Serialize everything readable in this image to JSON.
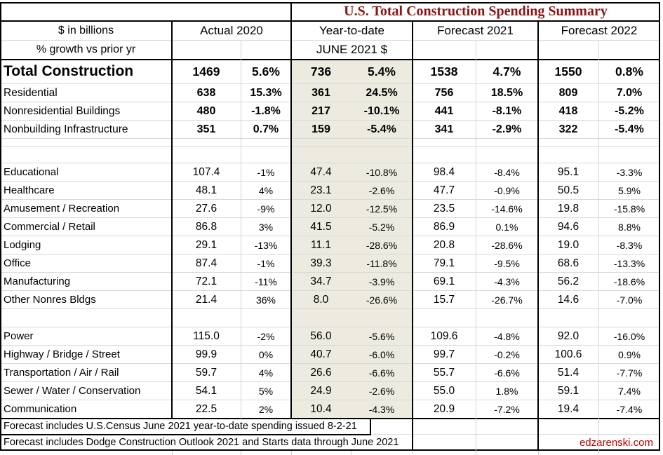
{
  "title": "U.S. Total Construction Spending Summary",
  "header": {
    "units_line1": "$ in billions",
    "units_line2": "% growth vs prior yr",
    "col_actual": "Actual 2020",
    "col_ytd_line1": "Year-to-date",
    "col_ytd_line2": "JUNE 2021 $",
    "col_forecast_2021": "Forecast 2021",
    "col_forecast_2022": "Forecast 2022"
  },
  "colors": {
    "title_text": "#8B1515",
    "ytd_highlight": "#EDEBE0",
    "watermark": "#C00000",
    "gridline": "#D9D9D9",
    "border": "#000000"
  },
  "rows": [
    {
      "style": "total",
      "label": "Total Construction",
      "a": "1469",
      "a_pct": "5.6%",
      "y": "736",
      "y_pct": "5.4%",
      "f1": "1538",
      "f1_pct": "4.7%",
      "f2": "1550",
      "f2_pct": "0.8%"
    },
    {
      "style": "subtotal",
      "label": "Residential",
      "a": "638",
      "a_pct": "15.3%",
      "y": "361",
      "y_pct": "24.5%",
      "f1": "756",
      "f1_pct": "18.5%",
      "f2": "809",
      "f2_pct": "7.0%"
    },
    {
      "style": "subtotal",
      "label": "Nonresidential Buildings",
      "a": "480",
      "a_pct": "-1.8%",
      "y": "217",
      "y_pct": "-10.1%",
      "f1": "441",
      "f1_pct": "-8.1%",
      "f2": "418",
      "f2_pct": "-5.2%"
    },
    {
      "style": "subtotal",
      "label": "Nonbuilding Infrastructure",
      "a": "351",
      "a_pct": "0.7%",
      "y": "159",
      "y_pct": "-5.4%",
      "f1": "341",
      "f1_pct": "-2.9%",
      "f2": "322",
      "f2_pct": "-5.4%"
    },
    {
      "style": "blank-sm"
    },
    {
      "style": "blank-md"
    },
    {
      "style": "detail",
      "label": "Educational",
      "a": "107.4",
      "a_pct": "-1%",
      "y": "47.4",
      "y_pct": "-10.8%",
      "f1": "98.4",
      "f1_pct": "-8.4%",
      "f2": "95.1",
      "f2_pct": "-3.3%"
    },
    {
      "style": "detail",
      "label": "Healthcare",
      "a": "48.1",
      "a_pct": "4%",
      "y": "23.1",
      "y_pct": "-2.6%",
      "f1": "47.7",
      "f1_pct": "-0.9%",
      "f2": "50.5",
      "f2_pct": "5.9%"
    },
    {
      "style": "detail",
      "label": "Amusement / Recreation",
      "a": "27.6",
      "a_pct": "-9%",
      "y": "12.0",
      "y_pct": "-12.5%",
      "f1": "23.5",
      "f1_pct": "-14.6%",
      "f2": "19.8",
      "f2_pct": "-15.8%"
    },
    {
      "style": "detail",
      "label": "Commercial / Retail",
      "a": "86.8",
      "a_pct": "3%",
      "y": "41.5",
      "y_pct": "-5.2%",
      "f1": "86.9",
      "f1_pct": "0.1%",
      "f2": "94.6",
      "f2_pct": "8.8%"
    },
    {
      "style": "detail",
      "label": "Lodging",
      "a": "29.1",
      "a_pct": "-13%",
      "y": "11.1",
      "y_pct": "-28.6%",
      "f1": "20.8",
      "f1_pct": "-28.6%",
      "f2": "19.0",
      "f2_pct": "-8.3%"
    },
    {
      "style": "detail",
      "label": "Office",
      "a": "87.4",
      "a_pct": "-1%",
      "y": "39.3",
      "y_pct": "-11.8%",
      "f1": "79.1",
      "f1_pct": "-9.5%",
      "f2": "68.6",
      "f2_pct": "-13.3%"
    },
    {
      "style": "detail",
      "label": "Manufacturing",
      "a": "72.1",
      "a_pct": "-11%",
      "y": "34.7",
      "y_pct": "-3.9%",
      "f1": "69.1",
      "f1_pct": "-4.3%",
      "f2": "56.2",
      "f2_pct": "-18.6%"
    },
    {
      "style": "detail",
      "label": "Other Nonres Bldgs",
      "a": "21.4",
      "a_pct": "36%",
      "y": "8.0",
      "y_pct": "-26.6%",
      "f1": "15.7",
      "f1_pct": "-26.7%",
      "f2": "14.6",
      "f2_pct": "-7.0%"
    },
    {
      "style": "blank"
    },
    {
      "style": "detail",
      "label": "Power",
      "a": "115.0",
      "a_pct": "-2%",
      "y": "56.0",
      "y_pct": "-5.6%",
      "f1": "109.6",
      "f1_pct": "-4.8%",
      "f2": "92.0",
      "f2_pct": "-16.0%"
    },
    {
      "style": "detail",
      "label": "Highway / Bridge / Street",
      "a": "99.9",
      "a_pct": "0%",
      "y": "40.7",
      "y_pct": "-6.0%",
      "f1": "99.7",
      "f1_pct": "-0.2%",
      "f2": "100.6",
      "f2_pct": "0.9%"
    },
    {
      "style": "detail",
      "label": "Transportation / Air / Rail",
      "a": "59.7",
      "a_pct": "4%",
      "y": "26.6",
      "y_pct": "-6.6%",
      "f1": "55.7",
      "f1_pct": "-6.6%",
      "f2": "51.4",
      "f2_pct": "-7.7%"
    },
    {
      "style": "detail",
      "label": "Sewer / Water / Conservation",
      "a": "54.1",
      "a_pct": "5%",
      "y": "24.9",
      "y_pct": "-2.6%",
      "f1": "55.0",
      "f1_pct": "1.8%",
      "f2": "59.1",
      "f2_pct": "7.4%"
    },
    {
      "style": "detail",
      "label": "Communication",
      "a": "22.5",
      "a_pct": "2%",
      "y": "10.4",
      "y_pct": "-4.3%",
      "f1": "20.9",
      "f1_pct": "-7.2%",
      "f2": "19.4",
      "f2_pct": "-7.4%"
    }
  ],
  "footnotes": [
    "Forecast includes U.S.Census June 2021 year-to-date spending issued 8-2-21",
    "Forecast includes Dodge Construction Outlook 2021 and Starts data through June 2021"
  ],
  "watermark": "edzarenski.com"
}
